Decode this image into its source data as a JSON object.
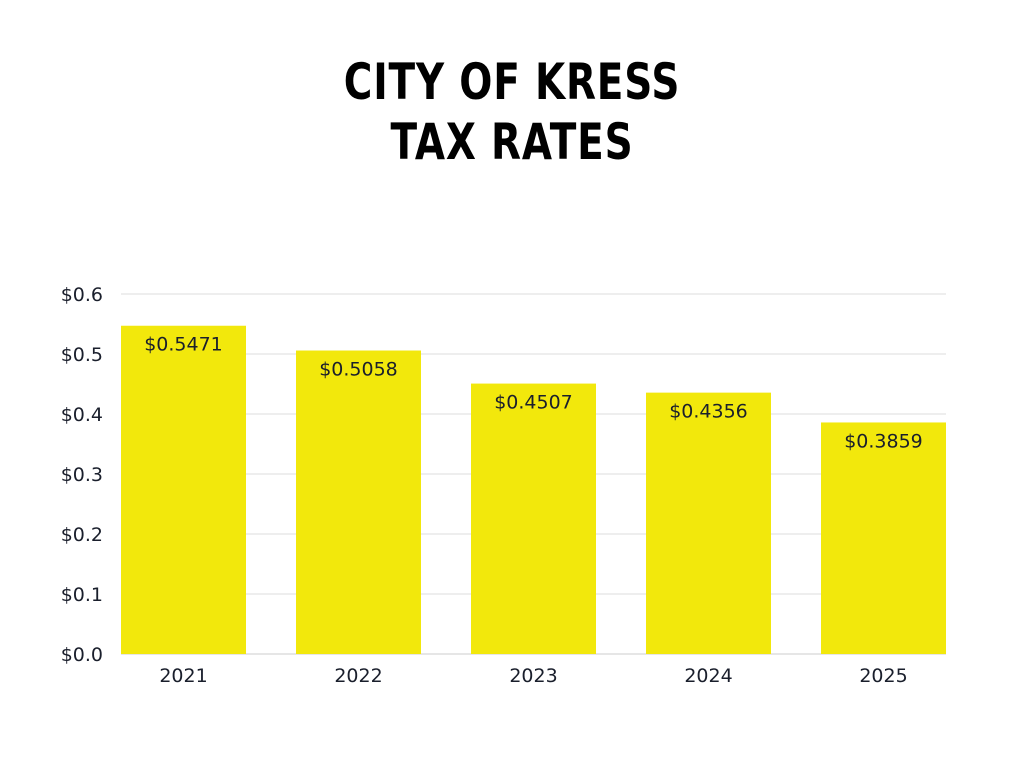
{
  "chart_data": {
    "type": "bar",
    "title_lines": [
      "CITY OF KRESS",
      "TAX RATES"
    ],
    "categories": [
      "2021",
      "2022",
      "2023",
      "2024",
      "2025"
    ],
    "values": [
      0.5471,
      0.5058,
      0.4507,
      0.4356,
      0.3859
    ],
    "data_labels": [
      "$0.5471",
      "$0.5058",
      "$0.4507",
      "$0.4356",
      "$0.3859"
    ],
    "y_ticks": [
      0,
      0.1,
      0.2,
      0.3,
      0.4,
      0.5,
      0.6
    ],
    "y_tick_labels": [
      "$0.0",
      "$0.1",
      "$0.2",
      "$0.3",
      "$0.4",
      "$0.5",
      "$0.6"
    ],
    "ylim": [
      0,
      0.6
    ],
    "grid": true,
    "legend": "none",
    "colors": {
      "bar": "#f2e80c",
      "grid": "#dddddd",
      "text": "#1a1f2c",
      "title": "#000000"
    }
  }
}
